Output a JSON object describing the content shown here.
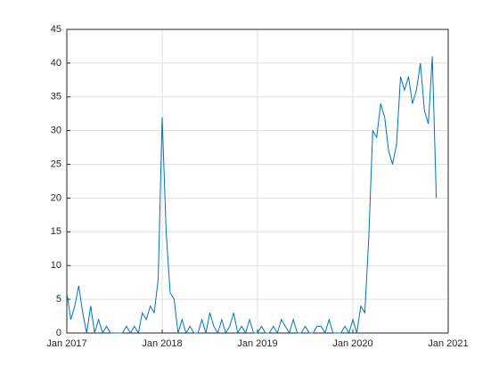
{
  "chart_data": {
    "type": "line",
    "x": [
      "2017-01",
      "2017-01",
      "2017-02",
      "2017-02",
      "2017-03",
      "2017-03",
      "2017-04",
      "2017-04",
      "2017-05",
      "2017-05",
      "2017-06",
      "2017-06",
      "2017-07",
      "2017-07",
      "2017-08",
      "2017-08",
      "2017-09",
      "2017-09",
      "2017-10",
      "2017-10",
      "2017-11",
      "2017-11",
      "2017-12",
      "2017-12",
      "2018-01",
      "2018-01",
      "2018-02",
      "2018-02",
      "2018-03",
      "2018-03",
      "2018-04",
      "2018-04",
      "2018-05",
      "2018-05",
      "2018-06",
      "2018-06",
      "2018-07",
      "2018-07",
      "2018-08",
      "2018-08",
      "2018-09",
      "2018-09",
      "2018-10",
      "2018-10",
      "2018-11",
      "2018-11",
      "2018-12",
      "2018-12",
      "2019-01",
      "2019-01",
      "2019-02",
      "2019-02",
      "2019-03",
      "2019-03",
      "2019-04",
      "2019-04",
      "2019-05",
      "2019-05",
      "2019-06",
      "2019-06",
      "2019-07",
      "2019-07",
      "2019-08",
      "2019-08",
      "2019-09",
      "2019-09",
      "2019-10",
      "2019-10",
      "2019-11",
      "2019-11",
      "2019-12",
      "2019-12",
      "2020-01",
      "2020-01",
      "2020-02",
      "2020-02",
      "2020-03",
      "2020-03",
      "2020-04",
      "2020-04",
      "2020-05",
      "2020-05",
      "2020-06",
      "2020-06",
      "2020-07",
      "2020-07",
      "2020-08",
      "2020-08",
      "2020-09",
      "2020-09",
      "2020-10",
      "2020-10",
      "2020-11",
      "2020-11"
    ],
    "series": [
      {
        "color": "#0072bd",
        "values": [
          6,
          2,
          4,
          7,
          3,
          0,
          4,
          0,
          2,
          0,
          1,
          0,
          0,
          0,
          0,
          1,
          0,
          1,
          0,
          3,
          2,
          4,
          3,
          8,
          32,
          15,
          6,
          5,
          0,
          2,
          0,
          1,
          0,
          0,
          2,
          0,
          3,
          1,
          0,
          2,
          0,
          1,
          3,
          0,
          1,
          0,
          2,
          0,
          0,
          1,
          0,
          0,
          1,
          0,
          2,
          1,
          0,
          2,
          0,
          0,
          1,
          0,
          0,
          1,
          1,
          0,
          2,
          0,
          0,
          0,
          1,
          0,
          2,
          0,
          4,
          3,
          14,
          30,
          29,
          34,
          32,
          27,
          25,
          28,
          38,
          36,
          38,
          34,
          36,
          40,
          33,
          31,
          41,
          20
        ]
      }
    ],
    "xlim": [
      "2017-01",
      "2021-01"
    ],
    "xticks": [
      {
        "value": "2017-01",
        "label": "Jan 2017"
      },
      {
        "value": "2018-01",
        "label": "Jan 2018"
      },
      {
        "value": "2019-01",
        "label": "Jan 2019"
      },
      {
        "value": "2020-01",
        "label": "Jan 2020"
      },
      {
        "value": "2021-01",
        "label": "Jan 2021"
      }
    ],
    "ylim": [
      0,
      45
    ],
    "yticks": [
      0,
      5,
      10,
      15,
      20,
      25,
      30,
      35,
      40,
      45
    ],
    "grid": true
  }
}
